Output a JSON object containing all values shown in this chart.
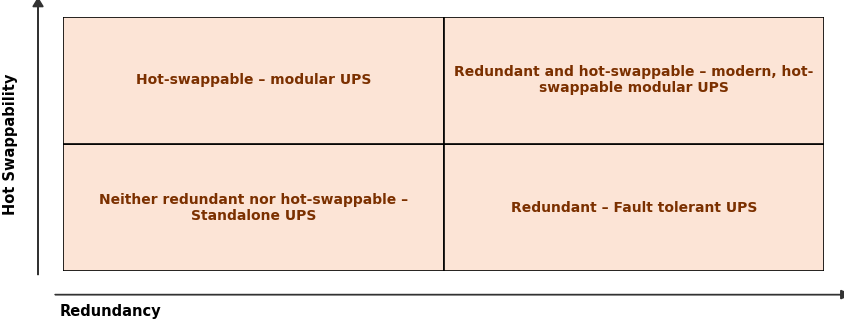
{
  "background_color": "#ffffff",
  "quadrant_fill_color": "#fce4d6",
  "quadrant_edge_color": "#000000",
  "quadrant_linewidth": 1.2,
  "texts": {
    "top_left": "Hot-swappable – modular UPS",
    "top_right": "Redundant and hot-swappable – modern, hot-\nswappable modular UPS",
    "bottom_left": "Neither redundant nor hot-swappable –\nStandalone UPS",
    "bottom_right": "Redundant – Fault tolerant UPS"
  },
  "text_color": "#7b3000",
  "text_fontsize": 10,
  "text_fontweight": "bold",
  "xlabel": "Redundancy",
  "ylabel": "Hot Swappability",
  "axis_label_fontsize": 10.5,
  "axis_label_fontweight": "bold",
  "axis_label_color": "#000000",
  "arrow_color": "#333333",
  "figsize": [
    8.45,
    3.31
  ],
  "dpi": 100
}
